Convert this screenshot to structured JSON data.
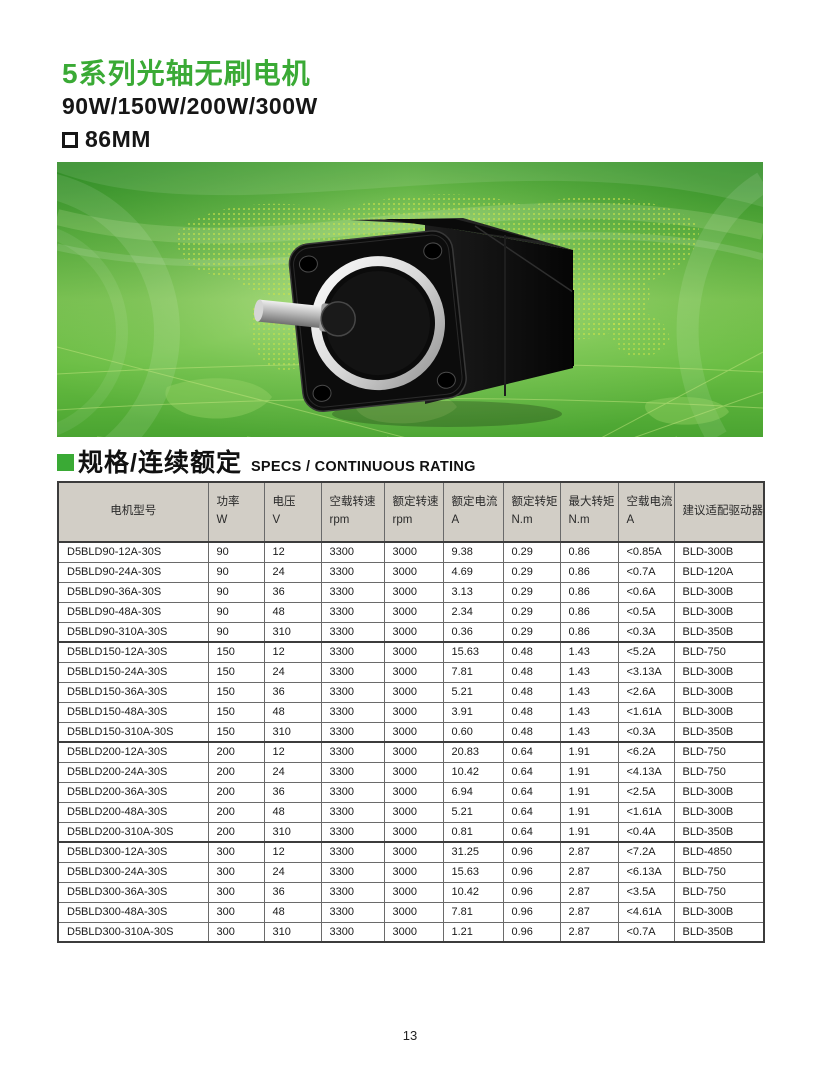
{
  "page": {
    "title_zh": "5系列光轴无刷电机",
    "subtitle_power": "90W/150W/200W/300W",
    "frame_size": "86MM",
    "page_number": "13"
  },
  "colors": {
    "brand_green": "#3aaa35",
    "table_header_bg": "#d2cec6",
    "banner_green": "#63b93e"
  },
  "section": {
    "title_zh": "规格/连续额定",
    "title_en": "SPECS / CONTINUOUS RATING"
  },
  "banner": {
    "description": "black brushless motor with silver flange and shaft on green world-map background"
  },
  "table": {
    "columns": [
      {
        "label": "电机型号",
        "unit": ""
      },
      {
        "label": "功率",
        "unit": "W"
      },
      {
        "label": "电压",
        "unit": "V"
      },
      {
        "label": "空载转速",
        "unit": "rpm"
      },
      {
        "label": "额定转速",
        "unit": "rpm"
      },
      {
        "label": "额定电流",
        "unit": "A"
      },
      {
        "label": "额定转矩",
        "unit": "N.m"
      },
      {
        "label": "最大转矩",
        "unit": "N.m"
      },
      {
        "label": "空载电流",
        "unit": "A"
      },
      {
        "label": "建议适配驱动器型号",
        "unit": ""
      }
    ],
    "group_start_indices": [
      5,
      10,
      15
    ],
    "rows": [
      [
        "D5BLD90-12A-30S",
        "90",
        "12",
        "3300",
        "3000",
        "9.38",
        "0.29",
        "0.86",
        "<0.85A",
        "BLD-300B"
      ],
      [
        "D5BLD90-24A-30S",
        "90",
        "24",
        "3300",
        "3000",
        "4.69",
        "0.29",
        "0.86",
        "<0.7A",
        "BLD-120A"
      ],
      [
        "D5BLD90-36A-30S",
        "90",
        "36",
        "3300",
        "3000",
        "3.13",
        "0.29",
        "0.86",
        "<0.6A",
        "BLD-300B"
      ],
      [
        "D5BLD90-48A-30S",
        "90",
        "48",
        "3300",
        "3000",
        "2.34",
        "0.29",
        "0.86",
        "<0.5A",
        "BLD-300B"
      ],
      [
        "D5BLD90-310A-30S",
        "90",
        "310",
        "3300",
        "3000",
        "0.36",
        "0.29",
        "0.86",
        "<0.3A",
        "BLD-350B"
      ],
      [
        "D5BLD150-12A-30S",
        "150",
        "12",
        "3300",
        "3000",
        "15.63",
        "0.48",
        "1.43",
        "<5.2A",
        "BLD-750"
      ],
      [
        "D5BLD150-24A-30S",
        "150",
        "24",
        "3300",
        "3000",
        "7.81",
        "0.48",
        "1.43",
        "<3.13A",
        "BLD-300B"
      ],
      [
        "D5BLD150-36A-30S",
        "150",
        "36",
        "3300",
        "3000",
        "5.21",
        "0.48",
        "1.43",
        "<2.6A",
        "BLD-300B"
      ],
      [
        "D5BLD150-48A-30S",
        "150",
        "48",
        "3300",
        "3000",
        "3.91",
        "0.48",
        "1.43",
        "<1.61A",
        "BLD-300B"
      ],
      [
        "D5BLD150-310A-30S",
        "150",
        "310",
        "3300",
        "3000",
        "0.60",
        "0.48",
        "1.43",
        "<0.3A",
        "BLD-350B"
      ],
      [
        "D5BLD200-12A-30S",
        "200",
        "12",
        "3300",
        "3000",
        "20.83",
        "0.64",
        "1.91",
        "<6.2A",
        "BLD-750"
      ],
      [
        "D5BLD200-24A-30S",
        "200",
        "24",
        "3300",
        "3000",
        "10.42",
        "0.64",
        "1.91",
        "<4.13A",
        "BLD-750"
      ],
      [
        "D5BLD200-36A-30S",
        "200",
        "36",
        "3300",
        "3000",
        "6.94",
        "0.64",
        "1.91",
        "<2.5A",
        "BLD-300B"
      ],
      [
        "D5BLD200-48A-30S",
        "200",
        "48",
        "3300",
        "3000",
        "5.21",
        "0.64",
        "1.91",
        "<1.61A",
        "BLD-300B"
      ],
      [
        "D5BLD200-310A-30S",
        "200",
        "310",
        "3300",
        "3000",
        "0.81",
        "0.64",
        "1.91",
        "<0.4A",
        "BLD-350B"
      ],
      [
        "D5BLD300-12A-30S",
        "300",
        "12",
        "3300",
        "3000",
        "31.25",
        "0.96",
        "2.87",
        "<7.2A",
        "BLD-4850"
      ],
      [
        "D5BLD300-24A-30S",
        "300",
        "24",
        "3300",
        "3000",
        "15.63",
        "0.96",
        "2.87",
        "<6.13A",
        "BLD-750"
      ],
      [
        "D5BLD300-36A-30S",
        "300",
        "36",
        "3300",
        "3000",
        "10.42",
        "0.96",
        "2.87",
        "<3.5A",
        "BLD-750"
      ],
      [
        "D5BLD300-48A-30S",
        "300",
        "48",
        "3300",
        "3000",
        "7.81",
        "0.96",
        "2.87",
        "<4.61A",
        "BLD-300B"
      ],
      [
        "D5BLD300-310A-30S",
        "300",
        "310",
        "3300",
        "3000",
        "1.21",
        "0.96",
        "2.87",
        "<0.7A",
        "BLD-350B"
      ]
    ]
  }
}
